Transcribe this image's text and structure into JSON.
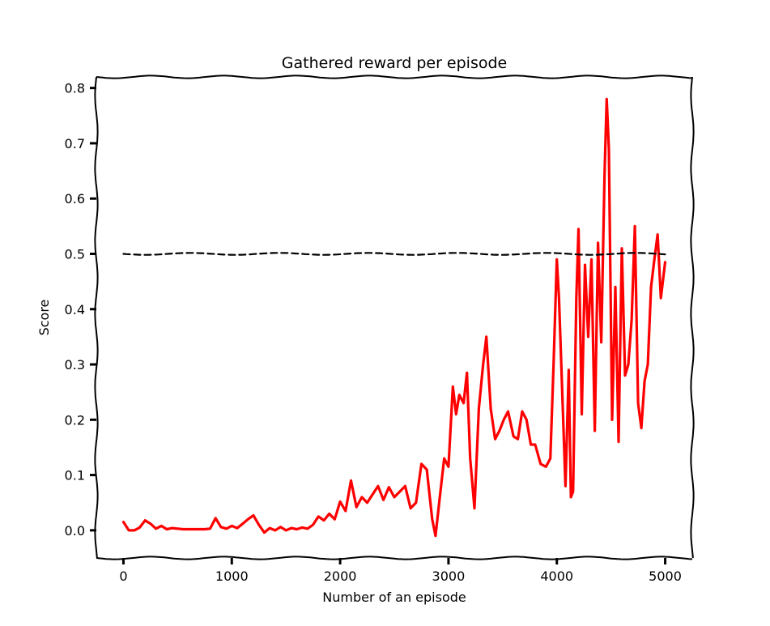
{
  "chart_data": {
    "type": "line",
    "title": "Gathered reward per episode",
    "xlabel": "Number of an episode",
    "ylabel": "Score",
    "xlim": [
      -250,
      5250
    ],
    "ylim": [
      -0.05,
      0.82
    ],
    "xticks": [
      0,
      1000,
      2000,
      3000,
      4000,
      5000
    ],
    "yticks": [
      0.0,
      0.1,
      0.2,
      0.3,
      0.4,
      0.5,
      0.6,
      0.7,
      0.8
    ],
    "xtick_labels": [
      "0",
      "1000",
      "2000",
      "3000",
      "4000",
      "5000"
    ],
    "ytick_labels": [
      "0.0",
      "0.1",
      "0.2",
      "0.3",
      "0.4",
      "0.5",
      "0.6",
      "0.7",
      "0.8"
    ],
    "grid": false,
    "style": "xkcd",
    "series": [
      {
        "color": "#ff0000",
        "line_style": "solid",
        "x": [
          0,
          50,
          100,
          150,
          200,
          250,
          300,
          350,
          400,
          450,
          500,
          550,
          600,
          650,
          700,
          750,
          800,
          850,
          900,
          950,
          1000,
          1050,
          1100,
          1150,
          1200,
          1250,
          1300,
          1350,
          1400,
          1450,
          1500,
          1550,
          1600,
          1650,
          1700,
          1750,
          1800,
          1850,
          1900,
          1950,
          2000,
          2050,
          2100,
          2150,
          2200,
          2250,
          2300,
          2350,
          2400,
          2450,
          2500,
          2550,
          2600,
          2650,
          2700,
          2750,
          2800,
          2850,
          2880,
          2920,
          2960,
          3000,
          3040,
          3070,
          3100,
          3140,
          3170,
          3200,
          3240,
          3280,
          3320,
          3350,
          3390,
          3430,
          3470,
          3510,
          3550,
          3600,
          3640,
          3680,
          3720,
          3760,
          3800,
          3850,
          3900,
          3940,
          3970,
          4000,
          4020,
          4050,
          4080,
          4110,
          4130,
          4150,
          4180,
          4200,
          4230,
          4260,
          4290,
          4320,
          4350,
          4380,
          4410,
          4440,
          4460,
          4480,
          4510,
          4540,
          4570,
          4600,
          4630,
          4660,
          4690,
          4720,
          4750,
          4780,
          4810,
          4840,
          4870,
          4900,
          4930,
          4960,
          5000
        ],
        "y": [
          0.015,
          0.0,
          0.0,
          0.005,
          0.018,
          0.012,
          0.003,
          0.008,
          0.002,
          0.004,
          0.003,
          0.002,
          0.002,
          0.002,
          0.002,
          0.002,
          0.003,
          0.022,
          0.006,
          0.003,
          0.008,
          0.004,
          0.012,
          0.02,
          0.027,
          0.01,
          -0.004,
          0.004,
          0.0,
          0.006,
          0.0,
          0.004,
          0.002,
          0.005,
          0.003,
          0.01,
          0.025,
          0.018,
          0.03,
          0.02,
          0.052,
          0.035,
          0.09,
          0.042,
          0.06,
          0.05,
          0.065,
          0.08,
          0.055,
          0.078,
          0.06,
          0.07,
          0.08,
          0.04,
          0.05,
          0.12,
          0.11,
          0.02,
          -0.01,
          0.06,
          0.13,
          0.115,
          0.26,
          0.21,
          0.245,
          0.23,
          0.285,
          0.13,
          0.04,
          0.22,
          0.3,
          0.35,
          0.22,
          0.165,
          0.18,
          0.2,
          0.215,
          0.17,
          0.165,
          0.215,
          0.2,
          0.155,
          0.155,
          0.12,
          0.115,
          0.13,
          0.3,
          0.49,
          0.42,
          0.25,
          0.08,
          0.29,
          0.06,
          0.07,
          0.42,
          0.545,
          0.21,
          0.48,
          0.35,
          0.49,
          0.18,
          0.52,
          0.34,
          0.64,
          0.78,
          0.69,
          0.2,
          0.44,
          0.16,
          0.51,
          0.28,
          0.3,
          0.38,
          0.55,
          0.23,
          0.185,
          0.27,
          0.3,
          0.44,
          0.49,
          0.535,
          0.42,
          0.485
        ]
      },
      {
        "color": "#000000",
        "line_style": "dashed",
        "x": [
          0,
          5000
        ],
        "y": [
          0.5,
          0.5
        ]
      }
    ]
  }
}
